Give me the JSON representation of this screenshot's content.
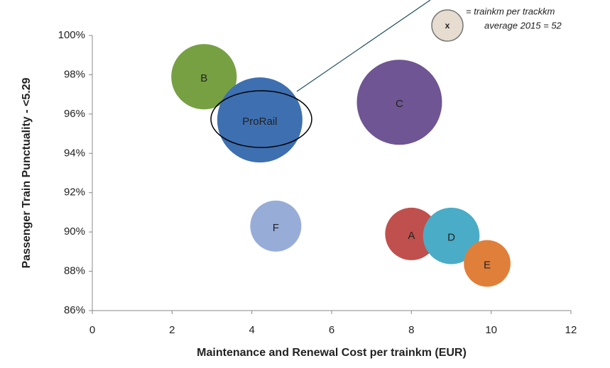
{
  "chart_data": {
    "type": "bubble",
    "xlabel": "Maintenance and Renewal Cost per trainkm (EUR)",
    "ylabel": "Passenger Train Punctuality - <5.29",
    "labels": [
      "B",
      "ProRail",
      "C",
      "F",
      "A",
      "D",
      "E"
    ],
    "x": [
      2.8,
      4.2,
      7.7,
      4.6,
      8.0,
      9.0,
      9.9
    ],
    "y": [
      97.9,
      95.7,
      96.6,
      90.3,
      89.9,
      89.8,
      88.4
    ],
    "sizes": [
      59,
      100,
      100,
      36,
      38,
      44,
      30
    ],
    "colors": [
      "#77a043",
      "#3e6fb0",
      "#6f5593",
      "#98acd8",
      "#c0504d",
      "#4aacc6",
      "#e07f3a"
    ],
    "xlim": [
      0,
      12
    ],
    "xticks": [
      0,
      2,
      4,
      6,
      8,
      10,
      12
    ],
    "ylim": [
      86,
      100
    ],
    "yticks": [
      {
        "value": 86,
        "label": "86%"
      },
      {
        "value": 88,
        "label": "88%"
      },
      {
        "value": 90,
        "label": "90%"
      },
      {
        "value": 92,
        "label": "92%"
      },
      {
        "value": 94,
        "label": "94%"
      },
      {
        "value": 96,
        "label": "96%"
      },
      {
        "value": 98,
        "label": "98%"
      },
      {
        "value": 100,
        "label": "100%"
      }
    ],
    "legend_symbol": "x",
    "annotations": [
      "= trainkm per trackkm",
      "average 2015 = 52"
    ]
  }
}
